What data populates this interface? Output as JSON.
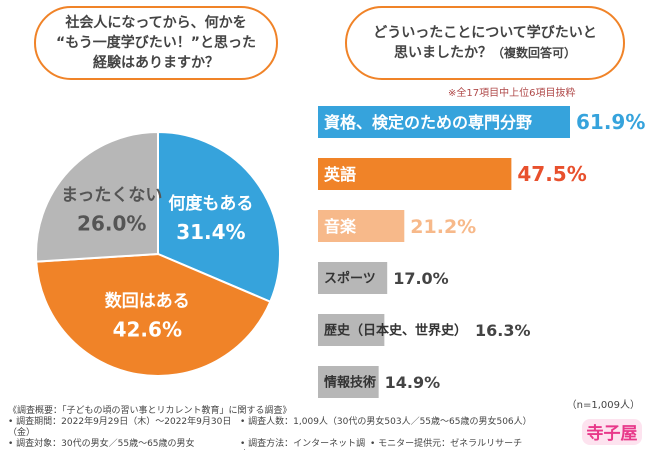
{
  "question1": {
    "line1": "社会人になってから、何かを",
    "line2": "“もう一度学びたい！”と思った",
    "line3": "経験はありますか？"
  },
  "question2": {
    "line1": "どういったことについて学びたいと",
    "line2": "思いましたか？",
    "note": "（複数回答可）"
  },
  "bar_note": "※全17項目中上位6項目抜粋",
  "sample_note": "（n=1,009人）",
  "footer": {
    "title": "《調査概要：「子どもの頃の習い事とリカレント教育」に関する調査》",
    "period": "• 調査期間：2022年9月29日（木）〜2022年9月30日（金）",
    "people": "• 調査人数：1,009人（30代の男女503人／55歳〜65歳の男女506人）",
    "target": "• 調査対象：30代の男女／55歳〜65歳の男女",
    "method": "• 調査方法：インターネット調査",
    "monitor": "• モニター提供元：ゼネラルリサーチ"
  },
  "logo_text": "寺子屋",
  "colors": {
    "accent": "#f08328",
    "blue": "#36a3dc",
    "gray": "#b7b7b7",
    "light_orange": "#f7b98a",
    "red": "#e8502d"
  },
  "chart_data": [
    {
      "type": "pie",
      "categories": [
        "何度もある",
        "数回はある",
        "まったくない"
      ],
      "values": [
        31.4,
        42.6,
        26.0
      ],
      "value_labels": [
        "31.4%",
        "42.6%",
        "26.0%"
      ]
    },
    {
      "type": "bar",
      "orientation": "horizontal",
      "categories": [
        "資格、検定のための専門分野",
        "英語",
        "音楽",
        "スポーツ",
        "歴史（日本史、世界史）",
        "情報技術"
      ],
      "values": [
        61.9,
        47.5,
        21.2,
        17.0,
        16.3,
        14.9
      ],
      "value_labels": [
        "61.9%",
        "47.5%",
        "21.2%",
        "17.0%",
        "16.3%",
        "14.9%"
      ]
    }
  ]
}
